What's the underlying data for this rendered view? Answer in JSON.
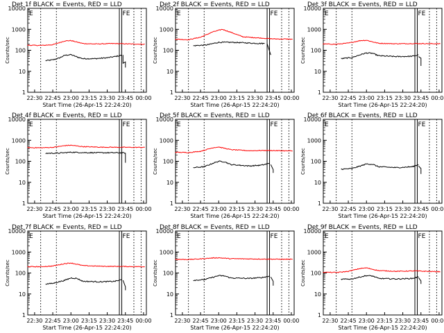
{
  "figure": {
    "xlabel": "Start Time (26-Apr-15 22:24:20)",
    "ylabel": "Counts/sec",
    "xticks": [
      "22:30",
      "22:45",
      "23:00",
      "23:15",
      "23:30",
      "23:45",
      "00:00"
    ],
    "yticks": [
      "1",
      "10",
      "100",
      "1000",
      "10000"
    ],
    "event_marker": "E",
    "flag_marker": "FE",
    "colors": {
      "events": "#000000",
      "lld": "#ff0000",
      "axes": "#000000",
      "background": "#ffffff"
    }
  },
  "chart_data": [
    {
      "type": "line",
      "title": "Det 1f BLACK = Events, RED = LLD",
      "ylim": [
        1,
        10000
      ],
      "yscale": "log",
      "series": [
        {
          "name": "Events",
          "color": "#000000",
          "points": [
            [
              "22:39",
              32
            ],
            [
              "22:45",
              35
            ],
            [
              "22:50",
              42
            ],
            [
              "22:55",
              58
            ],
            [
              "23:00",
              62
            ],
            [
              "23:05",
              48
            ],
            [
              "23:10",
              40
            ],
            [
              "23:20",
              40
            ],
            [
              "23:30",
              44
            ],
            [
              "23:36",
              50
            ],
            [
              "23:40",
              55
            ],
            [
              "23:42",
              60
            ]
          ],
          "tail": [
            [
              "23:43",
              60
            ],
            [
              "23:43",
              24
            ],
            [
              "23:45",
              28
            ],
            [
              "23:45",
              15
            ]
          ]
        },
        {
          "name": "LLD",
          "color": "#ff0000",
          "points": [
            [
              "22:24",
              175
            ],
            [
              "22:35",
              170
            ],
            [
              "22:45",
              185
            ],
            [
              "22:55",
              280
            ],
            [
              "23:00",
              290
            ],
            [
              "23:10",
              210
            ],
            [
              "23:20",
              200
            ],
            [
              "23:35",
              210
            ],
            [
              "23:50",
              200
            ],
            [
              "00:01",
              195
            ]
          ]
        }
      ]
    },
    {
      "type": "line",
      "title": "Det 2f BLACK = Events, RED = LLD",
      "ylim": [
        1,
        10000
      ],
      "yscale": "log",
      "series": [
        {
          "name": "Events",
          "color": "#000000",
          "points": [
            [
              "22:39",
              165
            ],
            [
              "22:50",
              180
            ],
            [
              "23:00",
              240
            ],
            [
              "23:10",
              240
            ],
            [
              "23:20",
              230
            ],
            [
              "23:30",
              215
            ],
            [
              "23:38",
              210
            ]
          ],
          "tail": [
            [
              "23:40",
              210
            ],
            [
              "23:43",
              60
            ]
          ]
        },
        {
          "name": "LLD",
          "color": "#ff0000",
          "points": [
            [
              "22:24",
              340
            ],
            [
              "22:35",
              320
            ],
            [
              "22:45",
              420
            ],
            [
              "22:55",
              750
            ],
            [
              "23:03",
              1000
            ],
            [
              "23:10",
              720
            ],
            [
              "23:20",
              440
            ],
            [
              "23:30",
              400
            ],
            [
              "23:45",
              350
            ],
            [
              "00:01",
              340
            ]
          ]
        }
      ]
    },
    {
      "type": "line",
      "title": "Det 3f BLACK = Events, RED = LLD",
      "ylim": [
        1,
        10000
      ],
      "yscale": "log",
      "series": [
        {
          "name": "Events",
          "color": "#000000",
          "points": [
            [
              "22:39",
              40
            ],
            [
              "22:48",
              45
            ],
            [
              "22:55",
              62
            ],
            [
              "23:00",
              75
            ],
            [
              "23:05",
              72
            ],
            [
              "23:10",
              55
            ],
            [
              "23:25",
              50
            ],
            [
              "23:38",
              52
            ],
            [
              "23:43",
              60
            ]
          ],
          "tail": [
            [
              "23:43",
              50
            ],
            [
              "23:45",
              42
            ],
            [
              "23:45",
              18
            ]
          ]
        },
        {
          "name": "LLD",
          "color": "#ff0000",
          "points": [
            [
              "22:24",
              200
            ],
            [
              "22:35",
              195
            ],
            [
              "22:45",
              220
            ],
            [
              "22:55",
              290
            ],
            [
              "23:00",
              300
            ],
            [
              "23:10",
              215
            ],
            [
              "23:25",
              205
            ],
            [
              "23:40",
              210
            ],
            [
              "00:01",
              205
            ]
          ]
        }
      ]
    },
    {
      "type": "line",
      "title": "Det 4f BLACK = Events, RED = LLD",
      "ylim": [
        1,
        10000
      ],
      "yscale": "log",
      "series": [
        {
          "name": "Events",
          "color": "#000000",
          "points": [
            [
              "22:39",
              240
            ],
            [
              "22:50",
              245
            ],
            [
              "23:00",
              270
            ],
            [
              "23:10",
              260
            ],
            [
              "23:25",
              255
            ],
            [
              "23:40",
              255
            ],
            [
              "23:45",
              250
            ]
          ],
          "tail": [
            [
              "23:45",
              250
            ],
            [
              "23:45",
              85
            ]
          ]
        },
        {
          "name": "LLD",
          "color": "#ff0000",
          "points": [
            [
              "22:24",
              450
            ],
            [
              "22:35",
              440
            ],
            [
              "22:45",
              460
            ],
            [
              "22:55",
              560
            ],
            [
              "23:00",
              580
            ],
            [
              "23:10",
              500
            ],
            [
              "23:25",
              470
            ],
            [
              "23:40",
              465
            ],
            [
              "00:01",
              460
            ]
          ]
        }
      ]
    },
    {
      "type": "line",
      "title": "Det 5f BLACK = Events, RED = LLD",
      "ylim": [
        1,
        10000
      ],
      "yscale": "log",
      "series": [
        {
          "name": "Events",
          "color": "#000000",
          "points": [
            [
              "22:39",
              50
            ],
            [
              "22:48",
              55
            ],
            [
              "22:55",
              80
            ],
            [
              "23:00",
              100
            ],
            [
              "23:05",
              95
            ],
            [
              "23:10",
              70
            ],
            [
              "23:25",
              60
            ],
            [
              "23:35",
              65
            ],
            [
              "23:42",
              80
            ]
          ],
          "tail": [
            [
              "23:43",
              70
            ],
            [
              "23:45",
              40
            ],
            [
              "23:45",
              28
            ]
          ]
        },
        {
          "name": "LLD",
          "color": "#ff0000",
          "points": [
            [
              "22:24",
              270
            ],
            [
              "22:35",
              260
            ],
            [
              "22:45",
              300
            ],
            [
              "22:55",
              440
            ],
            [
              "23:00",
              480
            ],
            [
              "23:10",
              360
            ],
            [
              "23:25",
              320
            ],
            [
              "23:40",
              330
            ],
            [
              "00:01",
              310
            ]
          ]
        }
      ]
    },
    {
      "type": "line",
      "title": "Det 6f BLACK = Events, RED = LLD",
      "ylim": [
        1,
        10000
      ],
      "yscale": "log",
      "series": [
        {
          "name": "Events",
          "color": "#000000",
          "points": [
            [
              "22:39",
              42
            ],
            [
              "22:48",
              45
            ],
            [
              "22:55",
              60
            ],
            [
              "23:00",
              75
            ],
            [
              "23:05",
              72
            ],
            [
              "23:10",
              55
            ],
            [
              "23:25",
              50
            ],
            [
              "23:38",
              55
            ],
            [
              "23:43",
              70
            ]
          ],
          "tail": [
            [
              "23:43",
              60
            ],
            [
              "23:45",
              45
            ],
            [
              "23:45",
              25
            ]
          ]
        }
      ]
    },
    {
      "type": "line",
      "title": "Det 7f BLACK = Events, RED = LLD",
      "ylim": [
        1,
        10000
      ],
      "yscale": "log",
      "series": [
        {
          "name": "Events",
          "color": "#000000",
          "points": [
            [
              "22:39",
              30
            ],
            [
              "22:45",
              32
            ],
            [
              "22:55",
              45
            ],
            [
              "23:00",
              58
            ],
            [
              "23:05",
              55
            ],
            [
              "23:10",
              40
            ],
            [
              "23:25",
              38
            ],
            [
              "23:36",
              40
            ],
            [
              "23:42",
              48
            ]
          ],
          "tail": [
            [
              "23:43",
              45
            ],
            [
              "23:45",
              22
            ],
            [
              "23:45",
              15
            ]
          ]
        },
        {
          "name": "LLD",
          "color": "#ff0000",
          "points": [
            [
              "22:24",
              200
            ],
            [
              "22:35",
              200
            ],
            [
              "22:45",
              215
            ],
            [
              "22:55",
              280
            ],
            [
              "23:00",
              300
            ],
            [
              "23:10",
              225
            ],
            [
              "23:25",
              210
            ],
            [
              "23:40",
              205
            ],
            [
              "00:01",
              200
            ]
          ]
        }
      ]
    },
    {
      "type": "line",
      "title": "Det 8f BLACK = Events, RED = LLD",
      "ylim": [
        1,
        10000
      ],
      "yscale": "log",
      "series": [
        {
          "name": "Events",
          "color": "#000000",
          "points": [
            [
              "22:39",
              45
            ],
            [
              "22:48",
              48
            ],
            [
              "22:55",
              62
            ],
            [
              "23:00",
              75
            ],
            [
              "23:05",
              72
            ],
            [
              "23:10",
              58
            ],
            [
              "23:25",
              55
            ],
            [
              "23:35",
              60
            ],
            [
              "23:42",
              70
            ]
          ],
          "tail": [
            [
              "23:43",
              65
            ],
            [
              "23:45",
              40
            ],
            [
              "23:45",
              25
            ]
          ]
        },
        {
          "name": "LLD",
          "color": "#ff0000",
          "points": [
            [
              "22:24",
              450
            ],
            [
              "22:35",
              440
            ],
            [
              "22:45",
              470
            ],
            [
              "22:55",
              520
            ],
            [
              "23:00",
              530
            ],
            [
              "23:10",
              480
            ],
            [
              "23:25",
              470
            ],
            [
              "23:40",
              460
            ],
            [
              "00:01",
              450
            ]
          ]
        }
      ]
    },
    {
      "type": "line",
      "title": "Det 9f BLACK = Events, RED = LLD",
      "ylim": [
        1,
        10000
      ],
      "yscale": "log",
      "series": [
        {
          "name": "Events",
          "color": "#000000",
          "points": [
            [
              "22:39",
              50
            ],
            [
              "22:48",
              52
            ],
            [
              "22:55",
              65
            ],
            [
              "23:00",
              75
            ],
            [
              "23:05",
              72
            ],
            [
              "23:10",
              55
            ],
            [
              "23:25",
              52
            ],
            [
              "23:38",
              55
            ],
            [
              "23:43",
              65
            ]
          ],
          "tail": [
            [
              "23:43",
              60
            ],
            [
              "23:45",
              42
            ],
            [
              "23:45",
              30
            ]
          ]
        },
        {
          "name": "LLD",
          "color": "#ff0000",
          "points": [
            [
              "22:24",
              110
            ],
            [
              "22:35",
              105
            ],
            [
              "22:45",
              120
            ],
            [
              "22:55",
              165
            ],
            [
              "23:00",
              175
            ],
            [
              "23:10",
              130
            ],
            [
              "23:25",
              120
            ],
            [
              "23:40",
              125
            ],
            [
              "00:01",
              115
            ]
          ]
        }
      ]
    }
  ]
}
